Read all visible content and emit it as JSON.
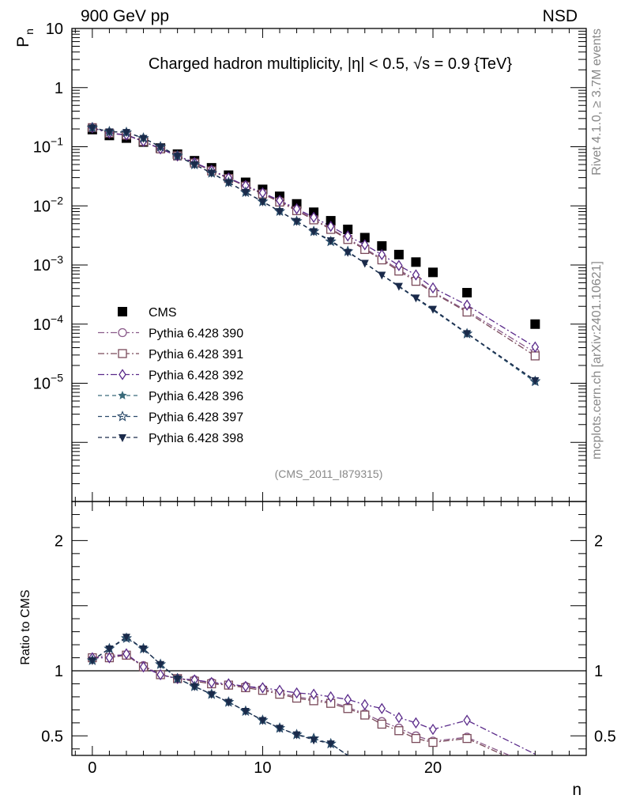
{
  "header": {
    "left": "900 GeV pp",
    "right": "NSD"
  },
  "side_text": {
    "rivet": "Rivet 4.1.0, ≥ 3.7M events",
    "mcplots": "mcplots.cern.ch [arXiv:2401.10621]"
  },
  "colors": {
    "cms": "#000000",
    "s390": "#8a5a8a",
    "s391": "#7a4a5a",
    "s392": "#5a2a8a",
    "s396": "#3a6a7a",
    "s397": "#2a4a6a",
    "s398": "#1a2a4a",
    "ref_line": "#000000"
  },
  "chart_data": [
    {
      "type": "line",
      "panel": "main",
      "title": "Charged hadron multiplicity, |η| < 0.5, √s = 0.9 {TeV}",
      "ylabel": "P_n",
      "ylabel_main": "P",
      "ylabel_sub": "n",
      "xlabel": "n",
      "yscale": "log",
      "xlim": [
        -1.2,
        29
      ],
      "ylim": [
        1e-07,
        10
      ],
      "watermark": "(CMS_2011_I879315)",
      "y_ticks": [
        {
          "value": 10,
          "label": "10"
        },
        {
          "value": 1,
          "label": "1"
        },
        {
          "value": 0.1,
          "base": "10",
          "exp": "−1"
        },
        {
          "value": 0.01,
          "base": "10",
          "exp": "−2"
        },
        {
          "value": 0.001,
          "base": "10",
          "exp": "−3"
        },
        {
          "value": 0.0001,
          "base": "10",
          "exp": "−4"
        },
        {
          "value": 1e-05,
          "base": "10",
          "exp": "−5"
        }
      ],
      "legend_position": "lower-left",
      "series": [
        {
          "name": "CMS",
          "marker": "square-filled",
          "color_key": "cms",
          "x": [
            0,
            1,
            2,
            3,
            4,
            5,
            6,
            7,
            8,
            9,
            10,
            11,
            12,
            13,
            14,
            15,
            16,
            17,
            18,
            19,
            20,
            22,
            26
          ],
          "y": [
            0.195,
            0.155,
            0.14,
            0.12,
            0.095,
            0.075,
            0.058,
            0.044,
            0.033,
            0.025,
            0.019,
            0.0145,
            0.0108,
            0.0078,
            0.0056,
            0.004,
            0.0029,
            0.0021,
            0.0015,
            0.00112,
            0.00075,
            0.00034,
            0.0001
          ]
        },
        {
          "name": "Pythia 6.428 390",
          "marker": "circle-open",
          "dash": "8,3,2,3",
          "color_key": "s390",
          "x": [
            0,
            1,
            2,
            3,
            4,
            5,
            6,
            7,
            8,
            9,
            10,
            11,
            12,
            13,
            14,
            15,
            16,
            17,
            18,
            19,
            20,
            22,
            26
          ],
          "y": [
            0.21,
            0.17,
            0.16,
            0.124,
            0.093,
            0.07,
            0.054,
            0.04,
            0.0295,
            0.022,
            0.0163,
            0.012,
            0.0086,
            0.006,
            0.0041,
            0.0028,
            0.0019,
            0.00128,
            0.00083,
            0.00056,
            0.00035,
            0.000168,
            3.3e-05
          ]
        },
        {
          "name": "Pythia 6.428 391",
          "marker": "square-open",
          "dash": "8,3,2,3",
          "color_key": "s391",
          "x": [
            0,
            1,
            2,
            3,
            4,
            5,
            6,
            7,
            8,
            9,
            10,
            11,
            12,
            13,
            14,
            15,
            16,
            17,
            18,
            19,
            20,
            22,
            26
          ],
          "y": [
            0.21,
            0.17,
            0.157,
            0.123,
            0.092,
            0.07,
            0.053,
            0.039,
            0.029,
            0.0215,
            0.0159,
            0.0116,
            0.0083,
            0.0058,
            0.004,
            0.0027,
            0.00183,
            0.00122,
            0.00079,
            0.00053,
            0.00034,
            0.00016,
            2.9e-05
          ]
        },
        {
          "name": "Pythia 6.428 392",
          "marker": "diamond-open",
          "dash": "8,3,2,3",
          "color_key": "s392",
          "x": [
            0,
            1,
            2,
            3,
            4,
            5,
            6,
            7,
            8,
            9,
            10,
            11,
            12,
            13,
            14,
            15,
            16,
            17,
            18,
            19,
            20,
            22,
            26
          ],
          "y": [
            0.21,
            0.17,
            0.158,
            0.123,
            0.092,
            0.07,
            0.054,
            0.04,
            0.0297,
            0.022,
            0.0166,
            0.0123,
            0.0089,
            0.0064,
            0.0045,
            0.0031,
            0.0022,
            0.0015,
            0.00098,
            0.00068,
            0.00041,
            0.00021,
            4.1e-05
          ]
        },
        {
          "name": "Pythia 6.428 396",
          "marker": "star-filled",
          "dash": "5,4",
          "color_key": "s396",
          "x": [
            0,
            1,
            2,
            3,
            4,
            5,
            6,
            7,
            8,
            9,
            10,
            11,
            12,
            13,
            14,
            15,
            22,
            26
          ],
          "y": [
            0.21,
            0.18,
            0.175,
            0.14,
            0.1,
            0.07,
            0.05,
            0.036,
            0.025,
            0.017,
            0.0118,
            0.0081,
            0.0055,
            0.0037,
            0.0025,
            0.0017,
            6.9e-05,
            1.05e-05
          ]
        },
        {
          "name": "Pythia 6.428 397",
          "marker": "star-open",
          "dash": "5,4",
          "color_key": "s397",
          "x": [
            0,
            1,
            2,
            3,
            4,
            5,
            6,
            7,
            8,
            9,
            10,
            11,
            12,
            13,
            14,
            15,
            22,
            26
          ],
          "y": [
            0.21,
            0.18,
            0.175,
            0.14,
            0.1,
            0.07,
            0.05,
            0.036,
            0.025,
            0.017,
            0.0118,
            0.0081,
            0.0055,
            0.0037,
            0.0025,
            0.0017,
            6.9e-05,
            1.08e-05
          ]
        },
        {
          "name": "Pythia 6.428 398",
          "marker": "triangle-down-filled",
          "dash": "5,4",
          "color_key": "s398",
          "x": [
            0,
            1,
            2,
            3,
            4,
            5,
            6,
            7,
            8,
            9,
            10,
            11,
            12,
            13,
            14,
            15,
            16,
            17,
            18,
            19,
            20,
            22,
            26
          ],
          "y": [
            0.21,
            0.18,
            0.176,
            0.14,
            0.1,
            0.07,
            0.05,
            0.036,
            0.025,
            0.017,
            0.0118,
            0.0081,
            0.0055,
            0.0037,
            0.0026,
            0.00165,
            0.00108,
            0.00068,
            0.00044,
            0.00028,
            0.00018,
            7e-05,
            1.12e-05
          ]
        }
      ]
    },
    {
      "type": "line",
      "panel": "ratio",
      "ylabel": "Ratio to CMS",
      "xlabel": "n",
      "ylim": [
        0.35,
        2.3
      ],
      "xlim": [
        -1.2,
        29
      ],
      "x_ticks": [
        0,
        10,
        20
      ],
      "y_ticks": [
        0.5,
        1,
        2
      ],
      "reference": 1,
      "series": [
        {
          "name": "Pythia 6.428 390",
          "color_key": "s390",
          "marker": "circle-open",
          "dash": "8,3,2,3",
          "x": [
            0,
            1,
            2,
            3,
            4,
            5,
            6,
            7,
            8,
            9,
            10,
            11,
            12,
            13,
            14,
            15,
            16,
            17,
            18,
            19,
            20,
            22,
            24.5
          ],
          "y": [
            1.1,
            1.12,
            1.12,
            1.04,
            0.97,
            0.94,
            0.93,
            0.91,
            0.89,
            0.88,
            0.86,
            0.83,
            0.8,
            0.78,
            0.76,
            0.72,
            0.67,
            0.61,
            0.56,
            0.5,
            0.46,
            0.49,
            0.35
          ]
        },
        {
          "name": "Pythia 6.428 391",
          "color_key": "s391",
          "marker": "square-open",
          "dash": "8,3,2,3",
          "x": [
            0,
            1,
            2,
            3,
            4,
            5,
            6,
            7,
            8,
            9,
            10,
            11,
            12,
            13,
            14,
            15,
            16,
            17,
            18,
            19,
            20,
            22,
            24.2
          ],
          "y": [
            1.1,
            1.1,
            1.12,
            1.03,
            0.97,
            0.94,
            0.92,
            0.9,
            0.89,
            0.87,
            0.85,
            0.82,
            0.79,
            0.77,
            0.75,
            0.71,
            0.66,
            0.59,
            0.54,
            0.48,
            0.45,
            0.48,
            0.35
          ]
        },
        {
          "name": "Pythia 6.428 392",
          "color_key": "s392",
          "marker": "diamond-open",
          "dash": "8,3,2,3",
          "x": [
            0,
            1,
            2,
            3,
            4,
            5,
            6,
            7,
            8,
            9,
            10,
            11,
            12,
            13,
            14,
            15,
            16,
            17,
            18,
            19,
            20,
            22,
            26
          ],
          "y": [
            1.1,
            1.1,
            1.13,
            1.03,
            0.97,
            0.94,
            0.93,
            0.91,
            0.9,
            0.88,
            0.87,
            0.85,
            0.83,
            0.82,
            0.8,
            0.78,
            0.74,
            0.71,
            0.64,
            0.6,
            0.55,
            0.62,
            0.36
          ]
        },
        {
          "name": "Pythia 6.428 396",
          "color_key": "s396",
          "marker": "star-filled",
          "dash": "5,4",
          "x": [
            0,
            1,
            2,
            3,
            4,
            5,
            6,
            7,
            8,
            9,
            10,
            11,
            12,
            13,
            14,
            15
          ],
          "y": [
            1.08,
            1.17,
            1.25,
            1.17,
            1.05,
            0.94,
            0.88,
            0.82,
            0.76,
            0.69,
            0.62,
            0.56,
            0.51,
            0.48,
            0.44,
            0.35
          ]
        },
        {
          "name": "Pythia 6.428 397",
          "color_key": "s397",
          "marker": "star-open",
          "dash": "5,4",
          "x": [
            0,
            1,
            2,
            3,
            4,
            5,
            6,
            7,
            8,
            9,
            10,
            11,
            12,
            13,
            14,
            15
          ],
          "y": [
            1.08,
            1.17,
            1.25,
            1.17,
            1.05,
            0.94,
            0.88,
            0.82,
            0.76,
            0.69,
            0.62,
            0.56,
            0.51,
            0.48,
            0.44,
            0.35
          ]
        },
        {
          "name": "Pythia 6.428 398",
          "color_key": "s398",
          "marker": "triangle-down-filled",
          "dash": "5,4",
          "x": [
            0,
            1,
            2,
            3,
            4,
            5,
            6,
            7,
            8,
            9,
            10,
            11,
            12,
            13,
            14,
            15
          ],
          "y": [
            1.08,
            1.17,
            1.26,
            1.17,
            1.05,
            0.94,
            0.88,
            0.82,
            0.76,
            0.69,
            0.62,
            0.56,
            0.51,
            0.47,
            0.44,
            0.35
          ]
        }
      ]
    }
  ]
}
